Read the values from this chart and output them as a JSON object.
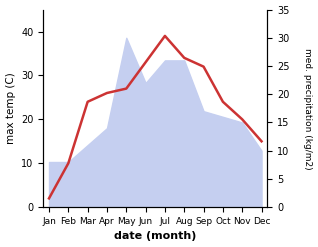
{
  "months": [
    "Jan",
    "Feb",
    "Mar",
    "Apr",
    "May",
    "Jun",
    "Jul",
    "Aug",
    "Sep",
    "Oct",
    "Nov",
    "Dec"
  ],
  "month_indices": [
    0,
    1,
    2,
    3,
    4,
    5,
    6,
    7,
    8,
    9,
    10,
    11
  ],
  "max_temp": [
    2,
    10,
    24,
    26,
    27,
    33,
    39,
    34,
    32,
    24,
    20,
    15
  ],
  "precipitation": [
    8,
    8,
    11,
    14,
    30,
    22,
    26,
    26,
    17,
    16,
    15,
    10
  ],
  "temp_color": "#cc3333",
  "precip_fill_color": "#c5cff0",
  "xlabel": "date (month)",
  "ylabel_left": "max temp (C)",
  "ylabel_right": "med. precipitation (kg/m2)",
  "ylim_left": [
    0,
    45
  ],
  "ylim_right": [
    0,
    35
  ],
  "yticks_left": [
    0,
    10,
    20,
    30,
    40
  ],
  "yticks_right": [
    0,
    5,
    10,
    15,
    20,
    25,
    30,
    35
  ],
  "background_color": "#ffffff",
  "figsize": [
    3.18,
    2.47
  ],
  "dpi": 100
}
